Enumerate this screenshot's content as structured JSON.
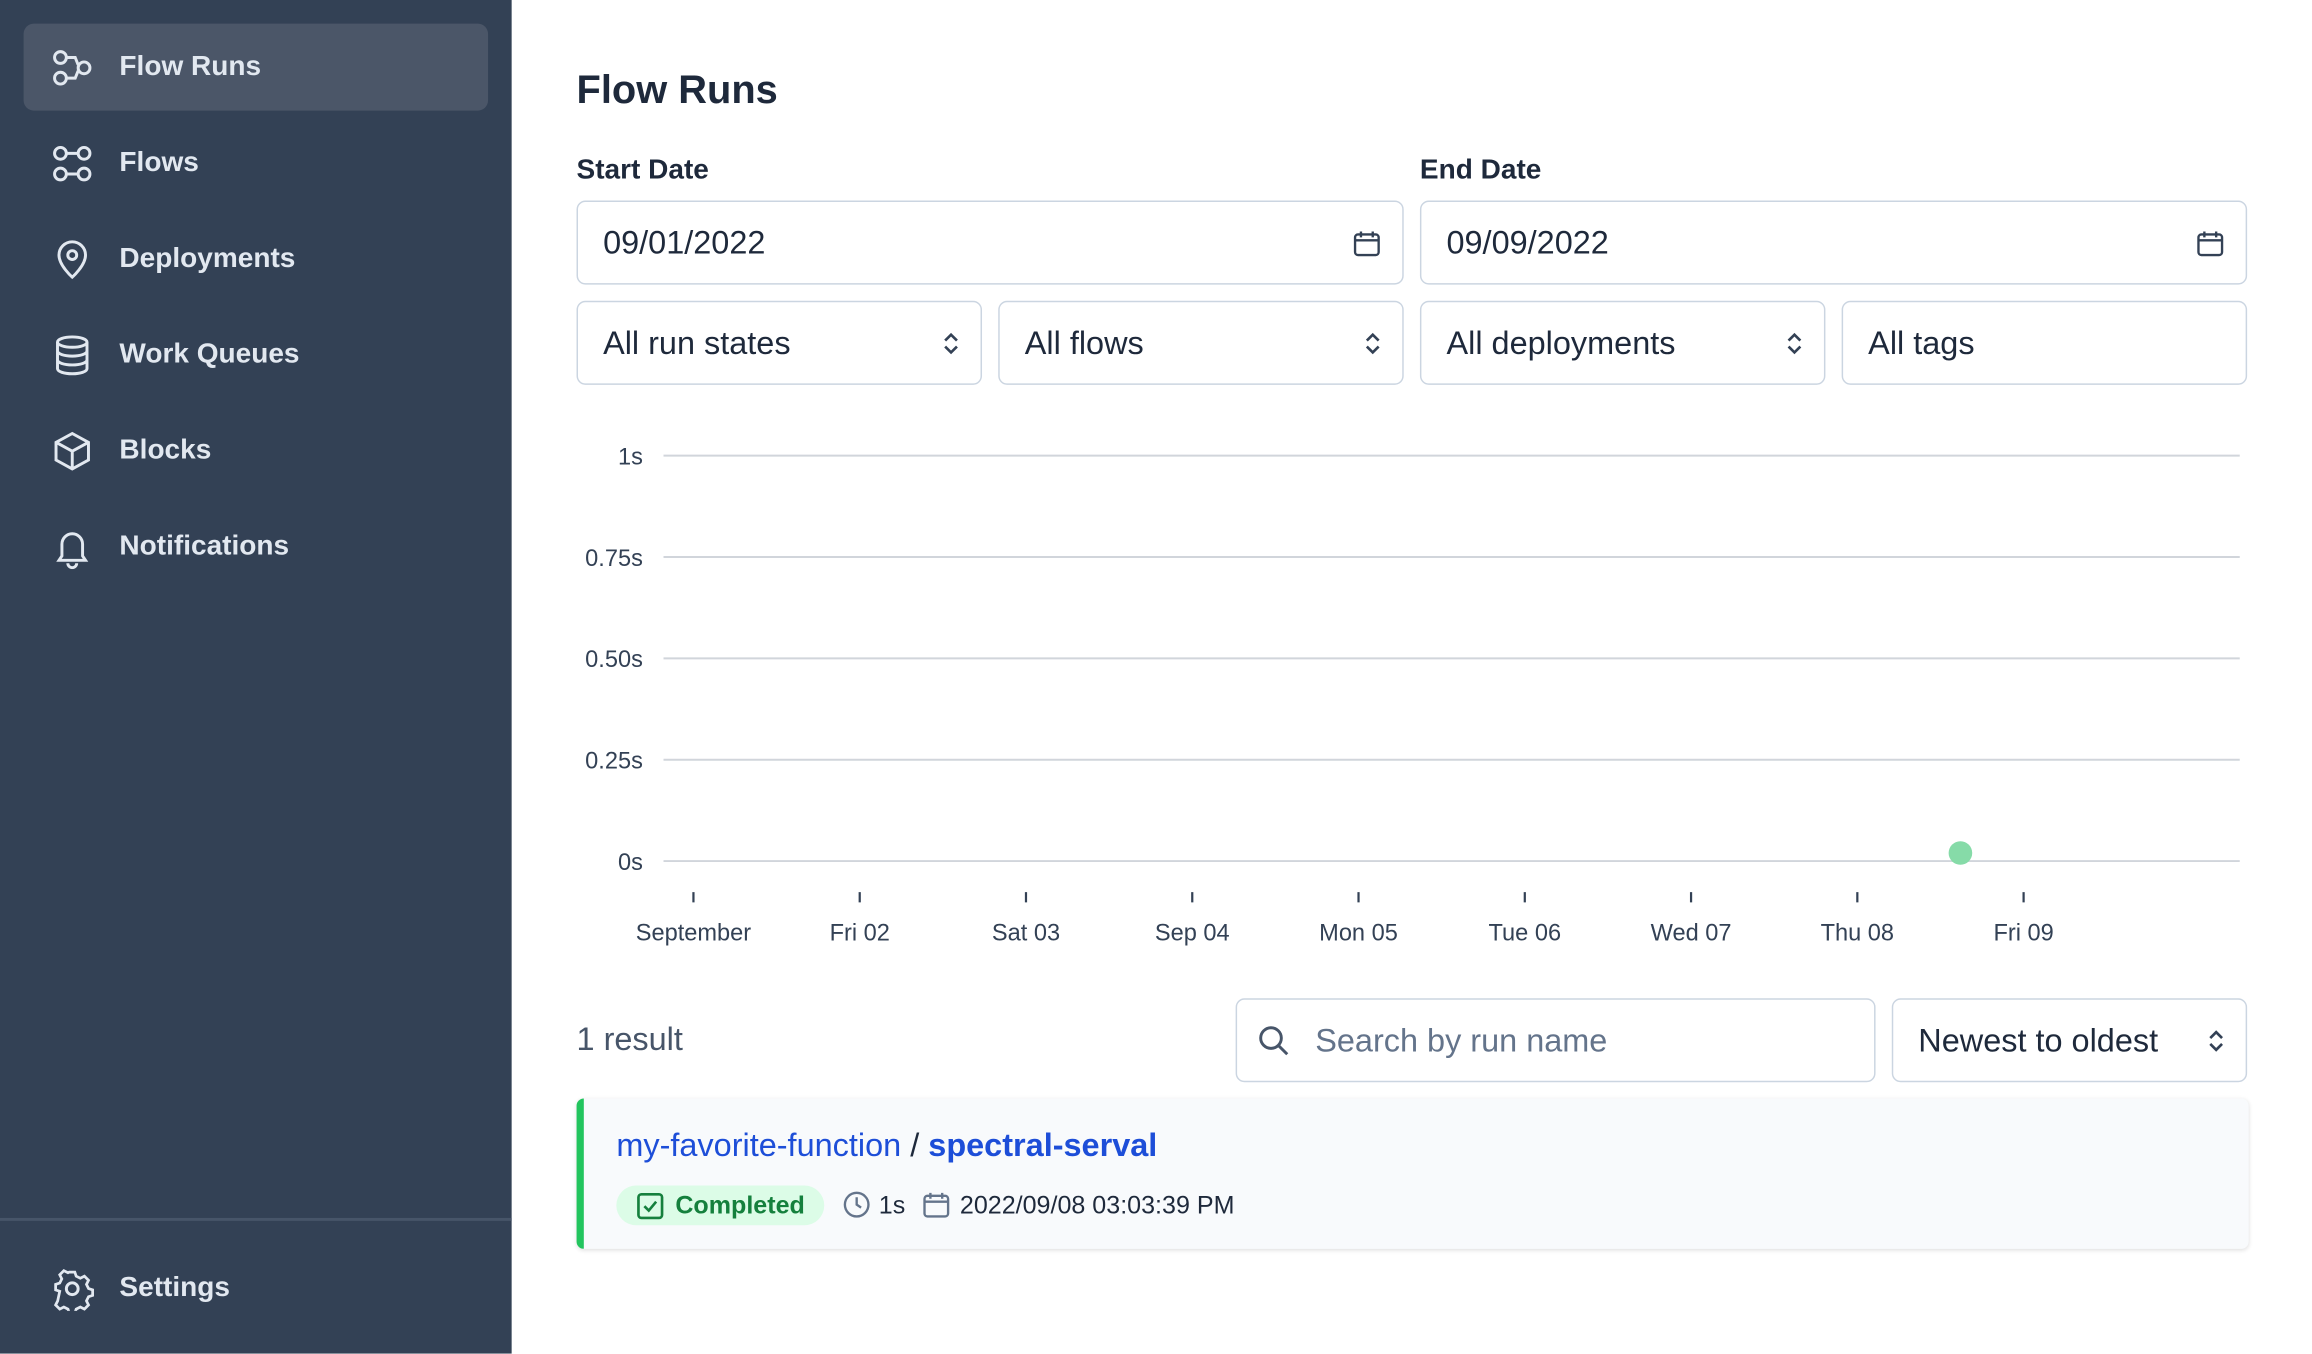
{
  "sidebar": {
    "items": [
      "Flow Runs",
      "Flows",
      "Deployments",
      "Work Queues",
      "Blocks",
      "Notifications"
    ],
    "settings": "Settings"
  },
  "header": {
    "title": "Flow Runs"
  },
  "filters": {
    "start_label": "Start Date",
    "start_value": "09/01/2022",
    "end_label": "End Date",
    "end_value": "09/09/2022",
    "states": "All run states",
    "flows": "All flows",
    "deployments": "All deployments",
    "tags": "All tags"
  },
  "chart_data": {
    "type": "scatter",
    "x": [
      8.62
    ],
    "values": [
      0.02
    ],
    "color": "#86dba8",
    "xlim": [
      0.82,
      10.3
    ],
    "xticks": [
      {
        "value": 1,
        "label": "September"
      },
      {
        "value": 2,
        "label": "Fri 02"
      },
      {
        "value": 3,
        "label": "Sat 03"
      },
      {
        "value": 4,
        "label": "Sep 04"
      },
      {
        "value": 5,
        "label": "Mon 05"
      },
      {
        "value": 6,
        "label": "Tue 06"
      },
      {
        "value": 7,
        "label": "Wed 07"
      },
      {
        "value": 8,
        "label": "Thu 08"
      },
      {
        "value": 9,
        "label": "Fri 09"
      }
    ],
    "ylim": [
      0,
      1
    ],
    "yticks": [
      {
        "value": 0,
        "label": "0s"
      },
      {
        "value": 0.25,
        "label": "0.25s"
      },
      {
        "value": 0.5,
        "label": "0.50s"
      },
      {
        "value": 0.75,
        "label": "0.75s"
      },
      {
        "value": 1,
        "label": "1s"
      }
    ],
    "grid": true
  },
  "results": {
    "count": "1 result",
    "search_placeholder": "Search by run name",
    "sort": "Newest to oldest",
    "runs": [
      {
        "flow": "my-favorite-function",
        "separator": "/",
        "name": "spectral-serval",
        "state": "Completed",
        "duration": "1s",
        "start_time": "2022/09/08 03:03:39 PM"
      }
    ]
  }
}
